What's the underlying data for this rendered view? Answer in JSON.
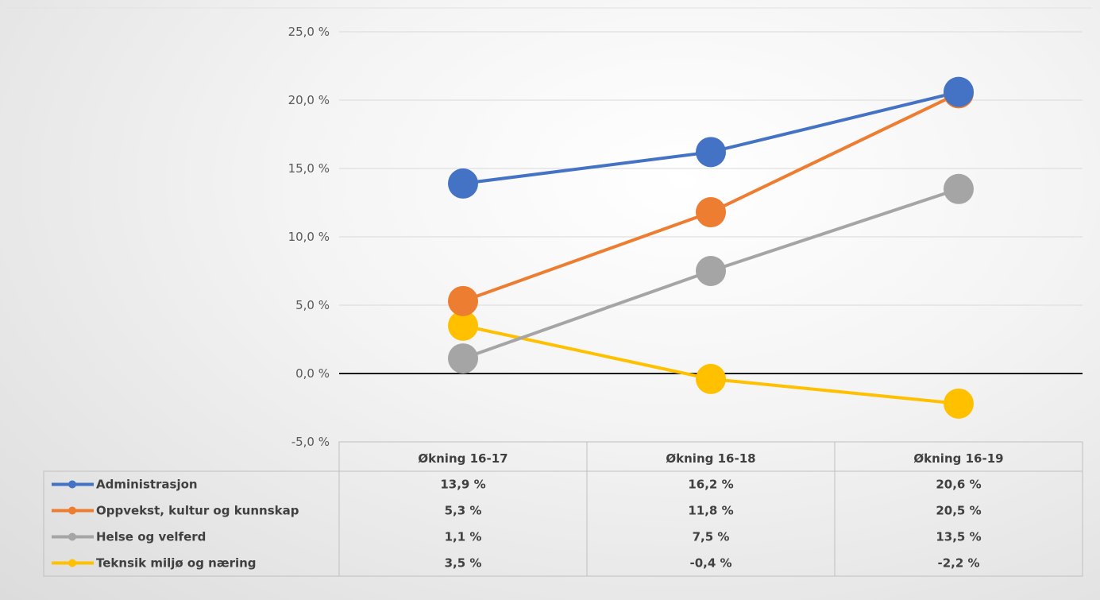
{
  "chart_data": {
    "type": "line",
    "categories": [
      "Økning 16-17",
      "Økning 16-18",
      "Økning 16-19"
    ],
    "ylim": [
      -5,
      25
    ],
    "yticks": [
      -5,
      0,
      5,
      10,
      15,
      20,
      25
    ],
    "ytick_labels": [
      "-5,0 %",
      "0,0 %",
      "5,0 %",
      "10,0 %",
      "15,0 %",
      "20,0 %",
      "25,0 %"
    ],
    "grid": true,
    "legend": "data-table",
    "series": [
      {
        "name": "Administrasjon",
        "color": "#4472C4",
        "values": [
          13.9,
          16.2,
          20.6
        ],
        "labels": [
          "13,9 %",
          "16,2 %",
          "20,6 %"
        ]
      },
      {
        "name": "Oppvekst, kultur og kunnskap",
        "color": "#ED7D31",
        "values": [
          5.3,
          11.8,
          20.5
        ],
        "labels": [
          "5,3 %",
          "11,8 %",
          "20,5 %"
        ]
      },
      {
        "name": "Helse og velferd",
        "color": "#A5A5A5",
        "values": [
          1.1,
          7.5,
          13.5
        ],
        "labels": [
          "1,1 %",
          "7,5 %",
          "13,5 %"
        ]
      },
      {
        "name": "Teknsik miljø og næring",
        "color": "#FFC000",
        "values": [
          3.5,
          -0.4,
          -2.2
        ],
        "labels": [
          "3,5 %",
          "-0,4 %",
          "-2,2 %"
        ]
      }
    ]
  }
}
